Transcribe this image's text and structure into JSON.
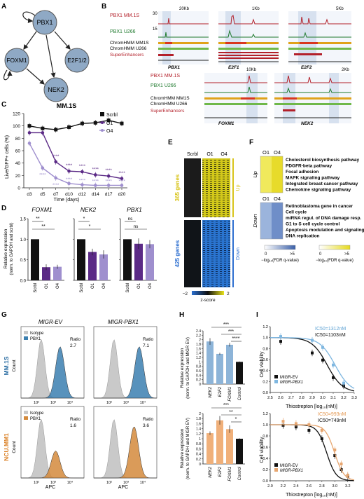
{
  "panels": {
    "A": {
      "letter": "A",
      "nodes": [
        "PBX1",
        "FOXM1",
        "E2F1/2",
        "NEK2"
      ]
    },
    "B": {
      "letter": "B",
      "track_labels": [
        "PBX1 MM.1S",
        "PBX1 U266",
        "ChromHMM MM1S",
        "ChromHMM U266",
        "SuperEnhancers"
      ],
      "scale_top": "30",
      "scale_mid": "15",
      "scalebars": [
        "20Kb",
        "1Kb",
        "5Kb",
        "10Kb",
        "2Kb"
      ],
      "genes": [
        "PBX1",
        "E2F1",
        "E2F2",
        "FOXM1",
        "NEK2"
      ]
    },
    "C": {
      "letter": "C",
      "title": "MM.1S",
      "ylabel": "Live/GFP+ cells (%)",
      "xlabel": "Time (days)",
      "legend": [
        "Scrbl",
        "O1",
        "O4"
      ],
      "stars": "****"
    },
    "D": {
      "letter": "D",
      "genes": [
        "FOXM1",
        "NEK2",
        "PBX1"
      ],
      "ylabel": [
        "Relative expression",
        "(norm. to GAPDH and scrbl)"
      ],
      "xcats": [
        "Scrbl",
        "O1",
        "O4"
      ],
      "sig": {
        "FOXM1": [
          "**",
          "**"
        ],
        "NEK2": [
          "*",
          "*"
        ],
        "PBX1": [
          "ns",
          "ns"
        ]
      }
    },
    "E": {
      "letter": "E",
      "col_labels": [
        "Scrbl",
        "O1",
        "O4"
      ],
      "up_label": "365 genes",
      "down_label": "425 genes",
      "up_tag": "Up",
      "down_tag": "Down",
      "scale_min": "−2",
      "scale_max": "2",
      "scale_title": "z-score"
    },
    "F": {
      "letter": "F",
      "col_labels": [
        "O1",
        "O4"
      ],
      "up_tag": "Up",
      "down_tag": "Down",
      "up_pathways": [
        "Cholesterol biosynthesis pathway",
        "PDGFR-beta pathway",
        "Focal adhesion",
        "MAPK signaling pathway",
        "Integrated breast cancer pathway",
        "Chemokine signaling pathway"
      ],
      "down_pathways": [
        "Retinoblastoma gene in cancer",
        "Cell cycle",
        "miRNA regul. of DNA damage resp.",
        "G1 to S cell cycle control",
        "Apoptosis modulation and signaling",
        "DNA replication"
      ],
      "scale_blue": [
        "0",
        ">5"
      ],
      "scale_yellow": [
        "0",
        ">5"
      ],
      "scale_caption": "−log₁₀(FDR q-value)"
    },
    "G": {
      "letter": "G",
      "col_titles": [
        "MIGR-EV",
        "MIGR-PBX1"
      ],
      "row_titles": [
        "MM.1S",
        "NCU.MM1"
      ],
      "legend_iso": "Isotype",
      "legend_pbx": "PBX1",
      "ratio_label": "Ratio",
      "ratios": [
        "2.7",
        "7.1",
        "1.6",
        "3.6"
      ],
      "xlabel": "APC",
      "ylabel": "Count"
    },
    "H": {
      "letter": "H",
      "ylabel": [
        "Relative expression",
        "(norm. to GAPDH and MIGR EV)"
      ],
      "xcats": [
        "NEK2",
        "E2F2",
        "FOXM1",
        "Control"
      ],
      "sig_top": [
        "***",
        "***",
        "****"
      ],
      "sig_bottom": [
        "***",
        "**",
        "*"
      ]
    },
    "I": {
      "letter": "I",
      "ylabel": "Cell viability",
      "xlabel": "Thiostrepton [log₁₀(nM)]",
      "ic50_top": [
        "IC50=1312nM",
        "IC50=1103nM"
      ],
      "ic50_bottom": [
        "IC50=993nM",
        "IC50=749nM"
      ],
      "legend": [
        "MIGR-EV",
        "MIGR-PBX1"
      ]
    }
  },
  "colors": {
    "scrbl": "#111111",
    "o1": "#5b2a86",
    "o4": "#9f8fce",
    "track_red": "#b3202a",
    "track_green": "#1f7a2e",
    "pbx_blue": "#3b7fb0",
    "pbx_orange": "#d48a3c",
    "mm_blue": "#2c6ea3",
    "ncu_orange": "#d97c1e"
  },
  "chart_data": [
    {
      "type": "line",
      "title": "MM.1S",
      "xlabel": "Time (days)",
      "ylabel": "Live/GFP+ cells (%)",
      "categories": [
        "d3",
        "d5",
        "d7",
        "d10",
        "d12",
        "d14",
        "d17",
        "d20"
      ],
      "ylim": [
        0,
        120
      ],
      "series": [
        {
          "name": "Scrbl",
          "values": [
            100,
            96,
            94,
            98,
            104,
            105,
            109,
            104
          ]
        },
        {
          "name": "O1",
          "values": [
            89,
            89,
            42,
            27,
            26,
            21,
            19,
            15
          ]
        },
        {
          "name": "O4",
          "values": [
            72,
            32,
            16,
            7,
            5,
            4,
            4,
            4
          ]
        }
      ]
    },
    {
      "type": "bar",
      "title": "FOXM1",
      "categories": [
        "Scrbl",
        "O1",
        "O4"
      ],
      "values": [
        1.0,
        0.32,
        0.33
      ],
      "ylim": [
        0,
        1.5
      ]
    },
    {
      "type": "bar",
      "title": "NEK2",
      "categories": [
        "Scrbl",
        "O1",
        "O4"
      ],
      "values": [
        1.0,
        0.69,
        0.63
      ],
      "ylim": [
        0,
        1.5
      ]
    },
    {
      "type": "bar",
      "title": "PBX1",
      "categories": [
        "Scrbl",
        "O1",
        "O4"
      ],
      "values": [
        1.0,
        0.89,
        0.88
      ],
      "ylim": [
        0,
        1.5
      ]
    },
    {
      "type": "bar",
      "categories": [
        "NEK2",
        "E2F2",
        "FOXM1",
        "Control"
      ],
      "values": [
        1.92,
        1.36,
        1.77,
        1.0
      ],
      "ylim": [
        0,
        2.4
      ]
    },
    {
      "type": "bar",
      "categories": [
        "NEK2",
        "E2F2",
        "FOXM1",
        "Control"
      ],
      "values": [
        1.22,
        1.73,
        1.38,
        1.0
      ],
      "ylim": [
        0,
        2.0
      ]
    },
    {
      "type": "scatter",
      "xlabel": "Thiostrepton [log10(nM)]",
      "ylabel": "Cell viability",
      "xlim": [
        2.5,
        3.3
      ],
      "ylim": [
        0,
        1.2
      ],
      "series": [
        {
          "name": "MIGR-EV",
          "x": [
            2.6,
            2.9,
            3.0,
            3.1,
            3.2
          ],
          "y": [
            0.93,
            0.72,
            0.59,
            0.27,
            0.12
          ]
        },
        {
          "name": "MIGR-PBX1",
          "x": [
            2.6,
            2.9,
            3.0,
            3.1,
            3.2
          ],
          "y": [
            1.02,
            0.95,
            0.82,
            0.5,
            0.17
          ]
        }
      ]
    },
    {
      "type": "scatter",
      "xlabel": "Thiostrepton [log10(nM)]",
      "ylabel": "Cell viability",
      "xlim": [
        2.0,
        3.3
      ],
      "ylim": [
        0,
        1.2
      ],
      "series": [
        {
          "name": "MIGR-EV",
          "x": [
            2.2,
            2.4,
            2.6,
            2.8,
            3.0,
            3.1,
            3.2
          ],
          "y": [
            0.99,
            0.96,
            0.9,
            0.75,
            0.45,
            0.2,
            0.08
          ]
        },
        {
          "name": "MIGR-PBX1",
          "x": [
            2.2,
            2.4,
            2.6,
            2.8,
            3.0,
            3.1,
            3.2
          ],
          "y": [
            1.06,
            1.02,
            1.0,
            0.9,
            0.55,
            0.3,
            0.1
          ]
        }
      ]
    }
  ]
}
